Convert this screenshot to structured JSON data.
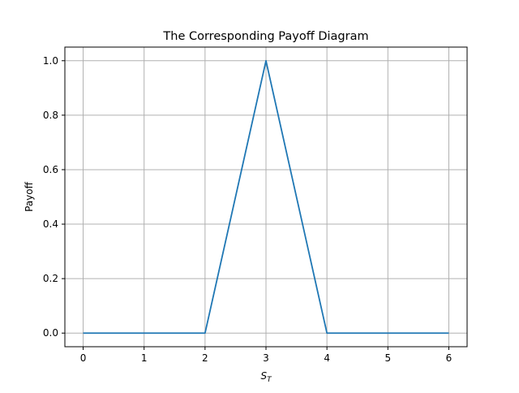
{
  "chart_data": {
    "type": "line",
    "title": "The Corresponding Payoff Diagram",
    "xlabel_main": "S",
    "xlabel_sub": "T",
    "ylabel": "Payoff",
    "x": [
      0,
      1,
      2,
      3,
      4,
      5,
      6
    ],
    "series": [
      {
        "x": [
          0,
          1,
          2,
          3,
          4,
          5,
          6
        ],
        "values": [
          0,
          0,
          0,
          1,
          0,
          0,
          0
        ]
      }
    ],
    "xlim": [
      -0.3,
      6.3
    ],
    "ylim": [
      -0.05,
      1.05
    ],
    "x_ticks": [
      0,
      1,
      2,
      3,
      4,
      5,
      6
    ],
    "x_tick_labels": [
      "0",
      "1",
      "2",
      "3",
      "4",
      "5",
      "6"
    ],
    "y_ticks": [
      0.0,
      0.2,
      0.4,
      0.6,
      0.8,
      1.0
    ],
    "y_tick_labels": [
      "0.0",
      "0.2",
      "0.4",
      "0.6",
      "0.8",
      "1.0"
    ],
    "grid": true,
    "legend": "none",
    "colors": {
      "line": "#1f77b4",
      "grid": "#b0b0b0",
      "axes": "#000000"
    }
  }
}
